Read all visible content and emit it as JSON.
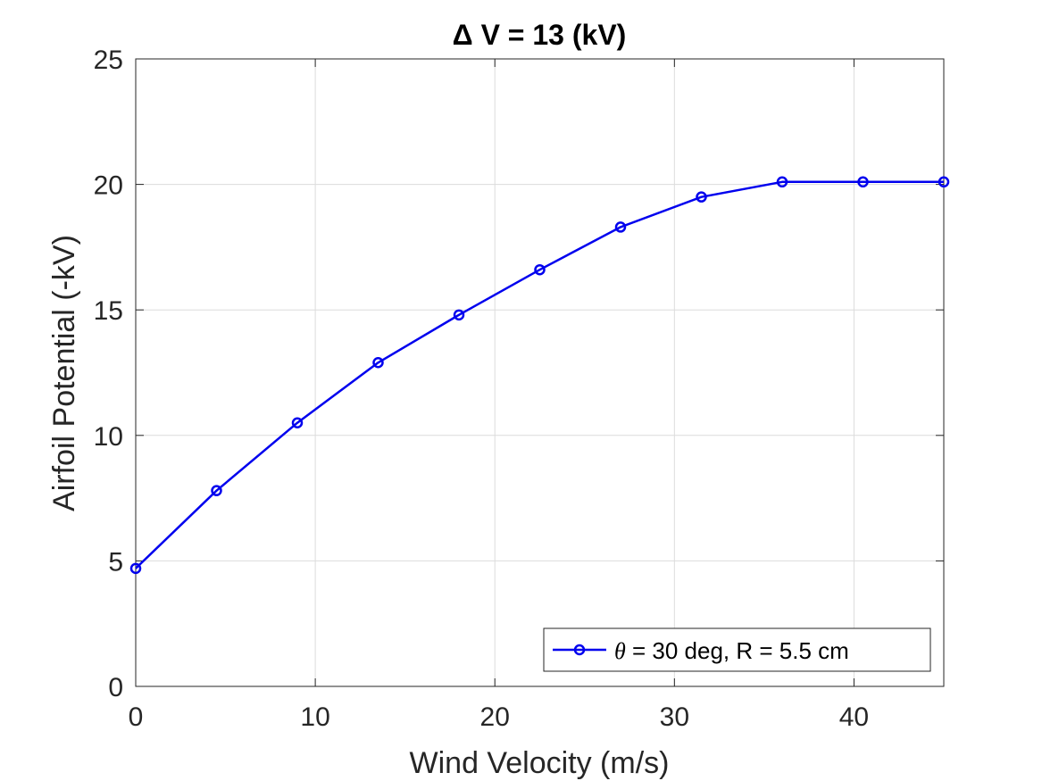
{
  "chart_data": {
    "type": "line",
    "title": "Δ V = 13 (kV)",
    "xlabel": "Wind Velocity (m/s)",
    "ylabel": "Airfoil Potential (-kV)",
    "xlim": [
      0,
      45
    ],
    "ylim": [
      0,
      25
    ],
    "xticks": [
      0,
      10,
      20,
      30,
      40
    ],
    "yticks": [
      0,
      5,
      10,
      15,
      20,
      25
    ],
    "grid": true,
    "legend_position": "bottom-right",
    "series": [
      {
        "name": "θ = 30 deg, R = 5.5 cm",
        "color": "#0000ee",
        "marker": "circle",
        "x": [
          0,
          4.5,
          9,
          13.5,
          18,
          22.5,
          27,
          31.5,
          36,
          40.5,
          45
        ],
        "y": [
          4.7,
          7.8,
          10.5,
          12.9,
          14.8,
          16.6,
          18.3,
          19.5,
          20.1,
          20.1,
          20.1
        ]
      }
    ],
    "legend": {
      "symbol": "θ",
      "rest": " = 30 deg, R = 5.5 cm"
    }
  }
}
